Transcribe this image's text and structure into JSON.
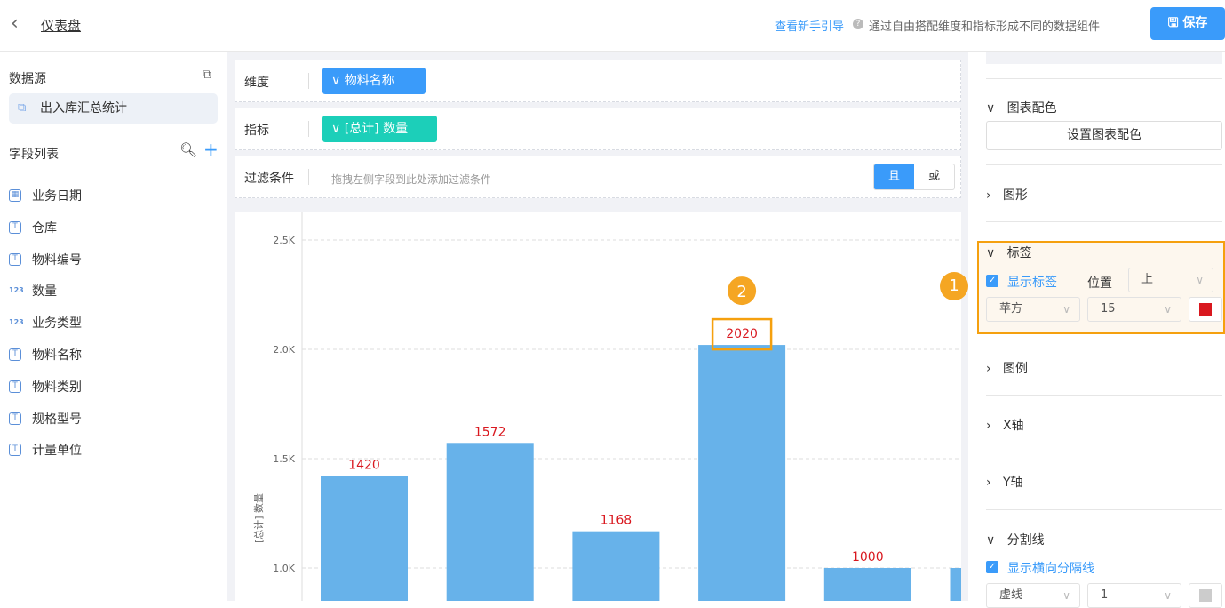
{
  "header": {
    "back_icon": "chevron-left-icon",
    "breadcrumb": "仪表盘",
    "guide_link": "查看新手引导",
    "hint": "通过自由搭配维度和指标形成不同的数据组件",
    "save_label": "保存"
  },
  "sidebar": {
    "datasource_title": "数据源",
    "datasource": "出入库汇总统计",
    "fields_title": "字段列表",
    "fields": [
      {
        "type": "date",
        "label": "业务日期"
      },
      {
        "type": "text",
        "label": "仓库"
      },
      {
        "type": "text",
        "label": "物料编号"
      },
      {
        "type": "number",
        "label": "数量"
      },
      {
        "type": "number",
        "label": "业务类型"
      },
      {
        "type": "text",
        "label": "物料名称"
      },
      {
        "type": "text",
        "label": "物料类别"
      },
      {
        "type": "text",
        "label": "规格型号"
      },
      {
        "type": "text",
        "label": "计量单位"
      }
    ]
  },
  "config": {
    "dimension_label": "维度",
    "dimension_value": "物料名称",
    "metric_label": "指标",
    "metric_value": "[总计] 数量",
    "filter_label": "过滤条件",
    "filter_placeholder": "拖拽左侧字段到此处添加过滤条件",
    "and_label": "且",
    "or_label": "或"
  },
  "chart_data": {
    "type": "bar",
    "ylabel": "[总计] 数量",
    "yticks": [
      "1.0K",
      "1.5K",
      "2.0K",
      "2.5K"
    ],
    "values": [
      1420,
      1572,
      1168,
      2020,
      1000,
      1000
    ],
    "bar_color": "#67b2ea",
    "label_color": "#d9181f",
    "grid": "dashed",
    "highlight_annotation": "2"
  },
  "right": {
    "chart_color_title": "图表配色",
    "chart_color_button": "设置图表配色",
    "shape_title": "图形",
    "label_title": "标签",
    "show_label": "显示标签",
    "position_label": "位置",
    "position_value": "上",
    "font_value": "苹方",
    "size_value": "15",
    "label_color": "#d9181f",
    "annotation": "1",
    "legend_title": "图例",
    "xaxis_title": "X轴",
    "yaxis_title": "Y轴",
    "split_title": "分割线",
    "show_hline": "显示横向分隔线",
    "line_style": "虚线",
    "line_width": "1",
    "accent": "#f5a623"
  }
}
